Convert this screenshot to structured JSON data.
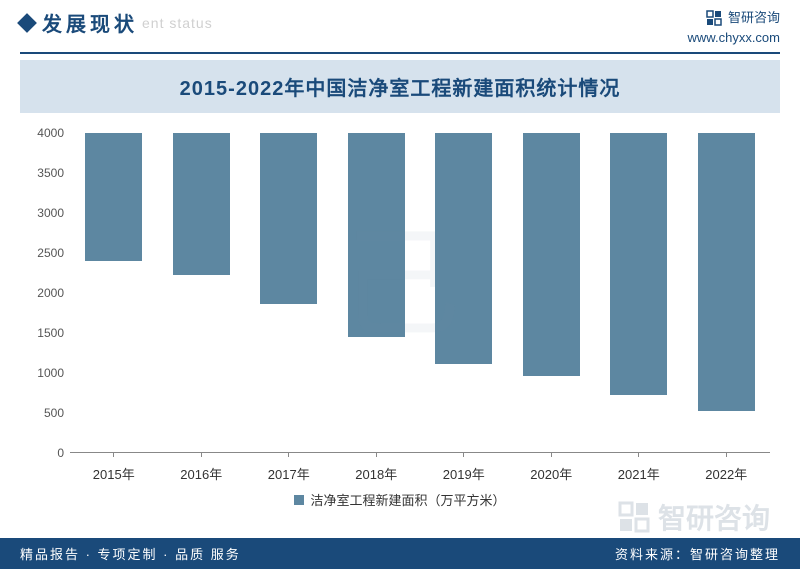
{
  "header": {
    "section_title": "发展现状",
    "watermark_sub": "ent status",
    "brand": "智研咨询",
    "url": "www.chyxx.com"
  },
  "chart": {
    "type": "bar",
    "title": "2015-2022年中国洁净室工程新建面积统计情况",
    "categories": [
      "2015年",
      "2016年",
      "2017年",
      "2018年",
      "2019年",
      "2020年",
      "2021年",
      "2022年"
    ],
    "values": [
      1600,
      1780,
      2150,
      2560,
      2900,
      3050,
      3280,
      3480
    ],
    "bar_color": "#5d87a1",
    "title_band_bg": "#d6e2ed",
    "title_color": "#1a4a7a",
    "title_fontsize": 20,
    "label_fontsize": 13,
    "ylim": [
      0,
      4000
    ],
    "ytick_step": 500,
    "yticks": [
      0,
      500,
      1000,
      1500,
      2000,
      2500,
      3000,
      3500,
      4000
    ],
    "background_color": "#ffffff",
    "axis_color": "#888888",
    "bar_width": 0.65,
    "legend_label": "洁净室工程新建面积（万平方米）"
  },
  "footer": {
    "left": "精品报告 · 专项定制 · 品质 服务",
    "right": "资料来源：智研咨询整理",
    "bg": "#1a4a7a",
    "text_color": "#ffffff"
  },
  "watermark": {
    "big_text": "智研咨询",
    "center_glyph": "己"
  }
}
